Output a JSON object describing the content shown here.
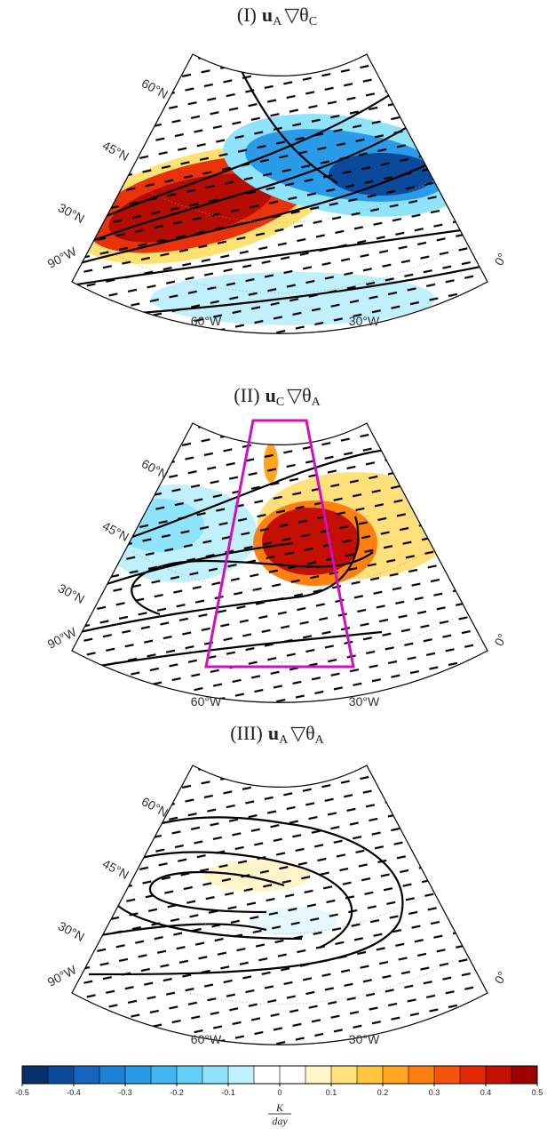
{
  "panels": [
    {
      "prefix": "(I)",
      "vector": "u",
      "vector_sub": "A",
      "operator": "▽θ",
      "theta_sub": "C",
      "lat_labels": [
        "60°N",
        "45°N",
        "30°N"
      ],
      "lon_labels": [
        "90°W",
        "60°W",
        "30°W",
        "0°"
      ]
    },
    {
      "prefix": "(II)",
      "vector": "u",
      "vector_sub": "C",
      "operator": "▽θ",
      "theta_sub": "A",
      "lat_labels": [
        "60°N",
        "45°N",
        "30°N"
      ],
      "lon_labels": [
        "90°W",
        "60°W",
        "30°W",
        "0°"
      ]
    },
    {
      "prefix": "(III)",
      "vector": "u",
      "vector_sub": "A",
      "operator": "▽θ",
      "theta_sub": "A",
      "lat_labels": [
        "60°N",
        "45°N",
        "30°N"
      ],
      "lon_labels": [
        "90°W",
        "60°W",
        "30°W",
        "0°"
      ]
    }
  ],
  "colorbar": {
    "lim": [
      -0.5,
      0.5
    ],
    "ticks": [
      -0.5,
      -0.4,
      -0.3,
      -0.2,
      -0.1,
      0,
      0.1,
      0.2,
      0.3,
      0.4,
      0.5
    ],
    "label_numerator": "K",
    "label_denominator": "day",
    "colors": [
      "#08306b",
      "#0b4a9a",
      "#1763c0",
      "#1f80d8",
      "#2a9be8",
      "#40b6f2",
      "#63cff7",
      "#8fe3fa",
      "#bff0fc",
      "#ffffff",
      "#ffffff",
      "#fff5c8",
      "#ffe07a",
      "#ffc53d",
      "#ffa51f",
      "#ff7f11",
      "#f55409",
      "#e02a05",
      "#c40f03",
      "#9e0000"
    ]
  }
}
